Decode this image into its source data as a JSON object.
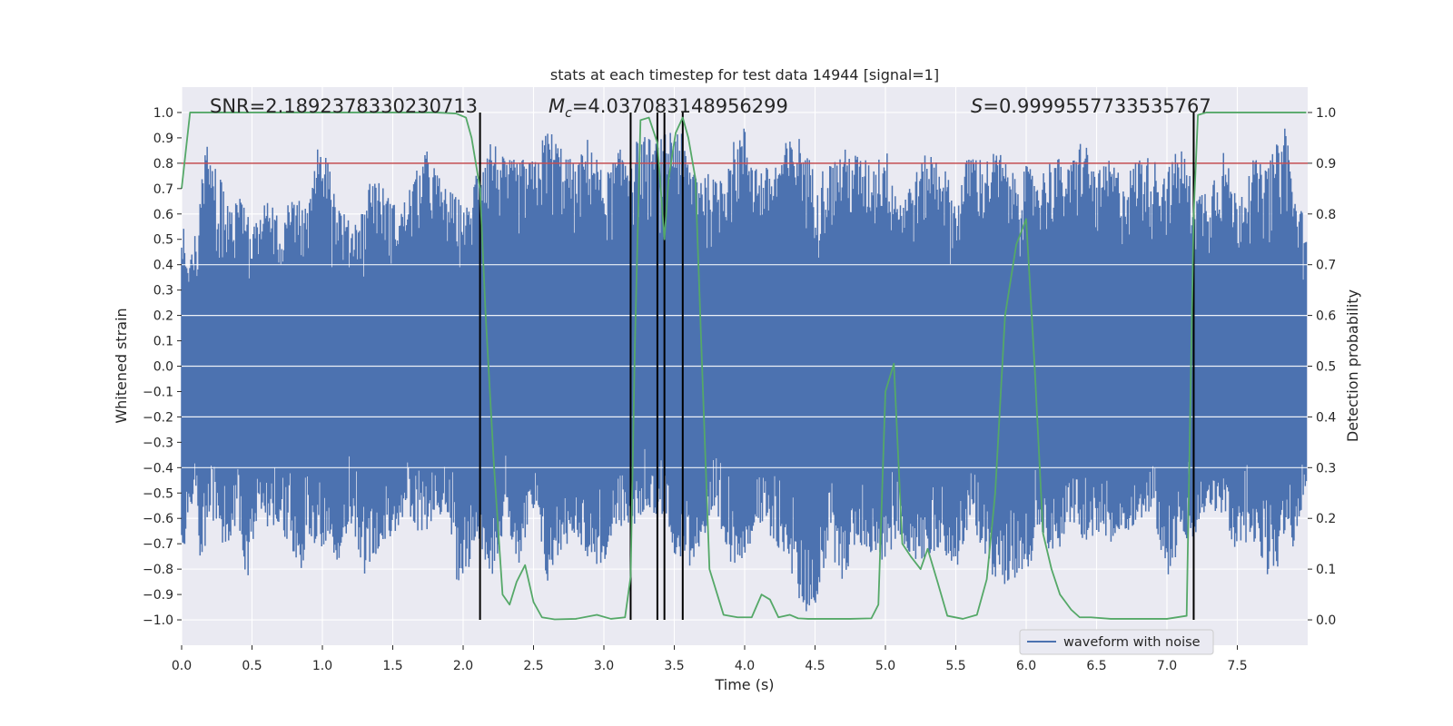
{
  "chart_data": {
    "type": "line",
    "title": "stats at each timestep for test data 14944 [signal=1]",
    "xlabel": "Time (s)",
    "ylabel": "Whitened strain",
    "y2label": "Detection probability",
    "xlim": [
      0.0,
      8.0
    ],
    "ylim": [
      -1.1,
      1.1
    ],
    "y2lim": [
      -0.05,
      1.05
    ],
    "x_ticks": [
      0.0,
      0.5,
      1.0,
      1.5,
      2.0,
      2.5,
      3.0,
      3.5,
      4.0,
      4.5,
      5.0,
      5.5,
      6.0,
      6.5,
      7.0,
      7.5
    ],
    "x_tick_labels": [
      "0.0",
      "0.5",
      "1.0",
      "1.5",
      "2.0",
      "2.5",
      "3.0",
      "3.5",
      "4.0",
      "4.5",
      "5.0",
      "5.5",
      "6.0",
      "6.5",
      "7.0",
      "7.5"
    ],
    "y_ticks": [
      1.0,
      0.9,
      0.8,
      0.7,
      0.6,
      0.5,
      0.4,
      0.3,
      0.2,
      0.1,
      0.0,
      -0.1,
      -0.2,
      -0.3,
      -0.4,
      -0.5,
      -0.6,
      -0.7,
      -0.8,
      -0.9,
      -1.0
    ],
    "y_tick_labels": [
      "1.0",
      "0.9",
      "0.8",
      "0.7",
      "0.6",
      "0.5",
      "0.4",
      "0.3",
      "0.2",
      "0.1",
      "0.0",
      "−0.1",
      "−0.2",
      "−0.3",
      "−0.4",
      "−0.5",
      "−0.6",
      "−0.7",
      "−0.8",
      "−0.9",
      "−1.0"
    ],
    "y2_ticks": [
      1.0,
      0.9,
      0.8,
      0.7,
      0.6,
      0.5,
      0.4,
      0.3,
      0.2,
      0.1,
      0.0
    ],
    "y2_tick_labels": [
      "1.0",
      "0.9",
      "0.8",
      "0.7",
      "0.6",
      "0.5",
      "0.4",
      "0.3",
      "0.2",
      "0.1",
      "0.0"
    ],
    "grid": true,
    "legend": {
      "placement": "lower-right",
      "entries": [
        "waveform with noise"
      ]
    },
    "annotations": {
      "snr": "SNR=2.1892378330230713",
      "mc_symbol": "M",
      "mc_sub": "c",
      "mc_value": "=4.037083148956299",
      "s_symbol": "S",
      "s_value": "=0.9999557733535767"
    },
    "threshold": {
      "y": 0.8,
      "color": "#c44e52"
    },
    "vertical_markers": [
      2.12,
      3.19,
      3.38,
      3.43,
      3.56,
      7.19
    ],
    "waveform": {
      "name": "waveform with noise",
      "color": "#4c72b0",
      "x_range": [
        0.0,
        7.99
      ],
      "upper_envelope": [
        [
          0.0,
          0.6
        ],
        [
          0.05,
          0.41
        ],
        [
          0.12,
          0.6
        ],
        [
          0.17,
          0.9
        ],
        [
          0.22,
          0.8
        ],
        [
          0.27,
          0.78
        ],
        [
          0.32,
          0.63
        ],
        [
          0.4,
          0.71
        ],
        [
          0.5,
          0.57
        ],
        [
          0.6,
          0.66
        ],
        [
          0.7,
          0.59
        ],
        [
          0.8,
          0.67
        ],
        [
          0.9,
          0.62
        ],
        [
          0.98,
          0.91
        ],
        [
          1.05,
          0.79
        ],
        [
          1.1,
          0.66
        ],
        [
          1.2,
          0.56
        ],
        [
          1.3,
          0.63
        ],
        [
          1.35,
          0.78
        ],
        [
          1.45,
          0.69
        ],
        [
          1.55,
          0.61
        ],
        [
          1.65,
          0.75
        ],
        [
          1.75,
          0.86
        ],
        [
          1.85,
          0.72
        ],
        [
          1.95,
          0.67
        ],
        [
          2.05,
          0.62
        ],
        [
          2.1,
          0.82
        ],
        [
          2.2,
          0.91
        ],
        [
          2.3,
          0.81
        ],
        [
          2.4,
          0.82
        ],
        [
          2.5,
          0.81
        ],
        [
          2.6,
          0.95
        ],
        [
          2.7,
          0.87
        ],
        [
          2.8,
          0.79
        ],
        [
          2.9,
          0.92
        ],
        [
          3.0,
          0.74
        ],
        [
          3.1,
          0.85
        ],
        [
          3.2,
          0.88
        ],
        [
          3.3,
          0.91
        ],
        [
          3.38,
          0.88
        ],
        [
          3.45,
          0.93
        ],
        [
          3.52,
          0.98
        ],
        [
          3.6,
          0.82
        ],
        [
          3.7,
          0.78
        ],
        [
          3.8,
          0.73
        ],
        [
          3.9,
          0.87
        ],
        [
          4.0,
          0.95
        ],
        [
          4.1,
          0.78
        ],
        [
          4.2,
          0.79
        ],
        [
          4.3,
          0.89
        ],
        [
          4.4,
          0.91
        ],
        [
          4.5,
          0.76
        ],
        [
          4.6,
          0.8
        ],
        [
          4.7,
          0.86
        ],
        [
          4.8,
          0.84
        ],
        [
          4.9,
          0.8
        ],
        [
          5.0,
          0.87
        ],
        [
          5.1,
          0.67
        ],
        [
          5.2,
          0.75
        ],
        [
          5.3,
          0.85
        ],
        [
          5.4,
          0.83
        ],
        [
          5.5,
          0.64
        ],
        [
          5.6,
          0.87
        ],
        [
          5.7,
          0.81
        ],
        [
          5.8,
          0.86
        ],
        [
          5.9,
          0.76
        ],
        [
          6.0,
          0.79
        ],
        [
          6.1,
          0.76
        ],
        [
          6.2,
          0.84
        ],
        [
          6.3,
          0.78
        ],
        [
          6.4,
          0.92
        ],
        [
          6.5,
          0.76
        ],
        [
          6.6,
          0.82
        ],
        [
          6.7,
          0.74
        ],
        [
          6.8,
          0.84
        ],
        [
          6.9,
          0.82
        ],
        [
          7.0,
          0.78
        ],
        [
          7.1,
          0.88
        ],
        [
          7.2,
          0.68
        ],
        [
          7.3,
          0.72
        ],
        [
          7.4,
          0.86
        ],
        [
          7.5,
          0.66
        ],
        [
          7.6,
          0.83
        ],
        [
          7.7,
          0.78
        ],
        [
          7.8,
          0.9
        ],
        [
          7.85,
          0.98
        ],
        [
          7.9,
          0.68
        ],
        [
          7.99,
          0.58
        ]
      ],
      "lower_envelope": [
        [
          0.0,
          -0.8
        ],
        [
          0.05,
          -0.58
        ],
        [
          0.1,
          -0.52
        ],
        [
          0.14,
          -0.83
        ],
        [
          0.2,
          -0.56
        ],
        [
          0.25,
          -0.68
        ],
        [
          0.3,
          -0.74
        ],
        [
          0.4,
          -0.6
        ],
        [
          0.45,
          -0.87
        ],
        [
          0.5,
          -0.82
        ],
        [
          0.55,
          -0.55
        ],
        [
          0.6,
          -0.65
        ],
        [
          0.7,
          -0.63
        ],
        [
          0.8,
          -0.79
        ],
        [
          0.85,
          -0.8
        ],
        [
          0.9,
          -0.68
        ],
        [
          1.0,
          -0.72
        ],
        [
          1.05,
          -0.66
        ],
        [
          1.1,
          -0.79
        ],
        [
          1.2,
          -0.61
        ],
        [
          1.3,
          -0.82
        ],
        [
          1.4,
          -0.72
        ],
        [
          1.5,
          -0.67
        ],
        [
          1.6,
          -0.58
        ],
        [
          1.7,
          -0.7
        ],
        [
          1.8,
          -0.58
        ],
        [
          1.9,
          -0.6
        ],
        [
          1.95,
          -0.86
        ],
        [
          2.0,
          -0.82
        ],
        [
          2.05,
          -0.79
        ],
        [
          2.1,
          -0.66
        ],
        [
          2.2,
          -0.84
        ],
        [
          2.3,
          -0.62
        ],
        [
          2.4,
          -0.8
        ],
        [
          2.5,
          -0.58
        ],
        [
          2.6,
          -0.86
        ],
        [
          2.7,
          -0.73
        ],
        [
          2.8,
          -0.66
        ],
        [
          2.9,
          -0.78
        ],
        [
          3.0,
          -0.79
        ],
        [
          3.1,
          -0.63
        ],
        [
          3.2,
          -0.65
        ],
        [
          3.3,
          -0.56
        ],
        [
          3.4,
          -0.6
        ],
        [
          3.45,
          -0.59
        ],
        [
          3.5,
          -0.74
        ],
        [
          3.6,
          -0.8
        ],
        [
          3.7,
          -0.7
        ],
        [
          3.8,
          -0.62
        ],
        [
          3.9,
          -0.79
        ],
        [
          4.0,
          -0.75
        ],
        [
          4.1,
          -0.62
        ],
        [
          4.2,
          -0.71
        ],
        [
          4.3,
          -0.74
        ],
        [
          4.35,
          -0.86
        ],
        [
          4.42,
          -0.99
        ],
        [
          4.5,
          -0.95
        ],
        [
          4.6,
          -0.72
        ],
        [
          4.7,
          -0.85
        ],
        [
          4.8,
          -0.7
        ],
        [
          4.9,
          -0.74
        ],
        [
          5.0,
          -0.78
        ],
        [
          5.1,
          -0.66
        ],
        [
          5.2,
          -0.79
        ],
        [
          5.3,
          -0.76
        ],
        [
          5.4,
          -0.71
        ],
        [
          5.5,
          -0.82
        ],
        [
          5.6,
          -0.62
        ],
        [
          5.7,
          -0.73
        ],
        [
          5.8,
          -0.89
        ],
        [
          5.9,
          -0.83
        ],
        [
          6.0,
          -0.85
        ],
        [
          6.1,
          -0.63
        ],
        [
          6.2,
          -0.78
        ],
        [
          6.3,
          -0.62
        ],
        [
          6.4,
          -0.69
        ],
        [
          6.5,
          -0.67
        ],
        [
          6.6,
          -0.71
        ],
        [
          6.7,
          -0.66
        ],
        [
          6.8,
          -0.61
        ],
        [
          6.9,
          -0.57
        ],
        [
          7.0,
          -0.84
        ],
        [
          7.1,
          -0.71
        ],
        [
          7.2,
          -0.68
        ],
        [
          7.3,
          -0.55
        ],
        [
          7.4,
          -0.61
        ],
        [
          7.5,
          -0.75
        ],
        [
          7.6,
          -0.66
        ],
        [
          7.7,
          -0.83
        ],
        [
          7.8,
          -0.81
        ],
        [
          7.85,
          -0.6
        ],
        [
          7.9,
          -0.75
        ],
        [
          7.99,
          -0.48
        ]
      ]
    },
    "detection_probability": {
      "name": "detection probability",
      "color": "#55a868",
      "x": [
        0.0,
        0.06,
        0.12,
        0.5,
        1.0,
        1.5,
        1.8,
        1.95,
        2.02,
        2.06,
        2.12,
        2.16,
        2.22,
        2.28,
        2.33,
        2.38,
        2.44,
        2.5,
        2.56,
        2.65,
        2.8,
        2.95,
        3.05,
        3.15,
        3.19,
        3.22,
        3.26,
        3.32,
        3.38,
        3.43,
        3.46,
        3.51,
        3.56,
        3.6,
        3.65,
        3.7,
        3.75,
        3.85,
        3.95,
        4.05,
        4.12,
        4.18,
        4.24,
        4.32,
        4.38,
        4.45,
        4.6,
        4.75,
        4.9,
        4.95,
        5.0,
        5.06,
        5.12,
        5.18,
        5.25,
        5.3,
        5.37,
        5.44,
        5.55,
        5.65,
        5.72,
        5.78,
        5.85,
        5.93,
        6.0,
        6.06,
        6.12,
        6.18,
        6.24,
        6.32,
        6.38,
        6.46,
        6.6,
        6.8,
        7.0,
        7.14,
        7.19,
        7.22,
        7.28,
        7.35,
        7.5,
        7.75,
        7.99
      ],
      "y": [
        0.85,
        1.0,
        1.0,
        1.0,
        1.0,
        1.0,
        1.0,
        0.998,
        0.99,
        0.95,
        0.85,
        0.6,
        0.3,
        0.05,
        0.03,
        0.075,
        0.108,
        0.035,
        0.005,
        0.001,
        0.002,
        0.01,
        0.002,
        0.005,
        0.085,
        0.54,
        0.985,
        0.99,
        0.94,
        0.75,
        0.87,
        0.96,
        0.99,
        0.95,
        0.87,
        0.48,
        0.1,
        0.01,
        0.005,
        0.005,
        0.05,
        0.04,
        0.005,
        0.01,
        0.003,
        0.002,
        0.002,
        0.002,
        0.003,
        0.03,
        0.45,
        0.505,
        0.15,
        0.125,
        0.1,
        0.14,
        0.075,
        0.008,
        0.002,
        0.01,
        0.08,
        0.25,
        0.6,
        0.74,
        0.79,
        0.5,
        0.17,
        0.1,
        0.05,
        0.02,
        0.005,
        0.005,
        0.002,
        0.002,
        0.002,
        0.008,
        0.8,
        0.995,
        1.0,
        1.0,
        1.0,
        1.0,
        1.0
      ]
    }
  }
}
